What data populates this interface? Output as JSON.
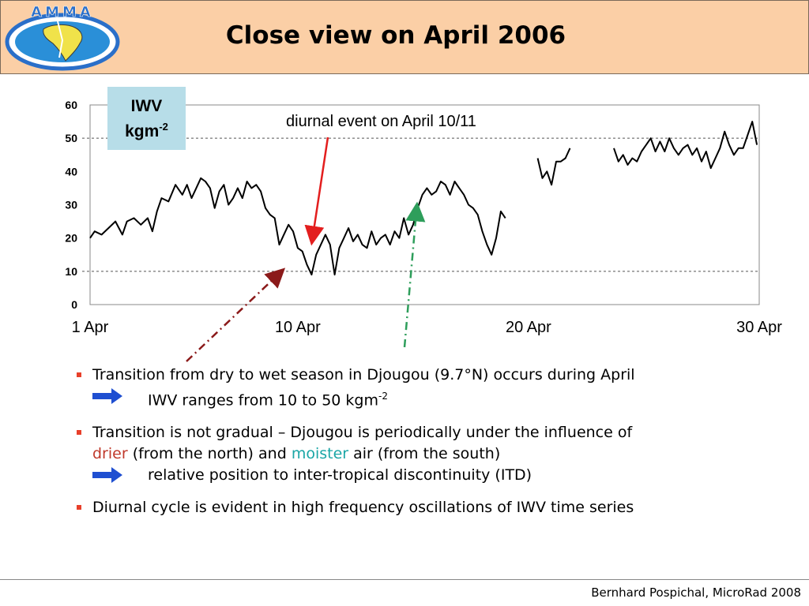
{
  "header": {
    "logo_text": "AMMA",
    "title": "Close view on April 2006"
  },
  "annotations": {
    "iwv_line1": "IWV",
    "iwv_line2": "kgm",
    "iwv_exp": "-2",
    "event_label": "diurnal event on April 10/11"
  },
  "colors": {
    "header_bg": "#fbcfa6",
    "iwv_box_bg": "#b7dde8",
    "event_arrow": "#e31e1e",
    "dry_arrow": "#8b1a1a",
    "wet_arrow": "#2e9e5b",
    "bullet": "#e8402a",
    "drier_text": "#c0392b",
    "moister_text": "#1aa6a6",
    "sub_arrow": "#1f4fd1"
  },
  "chart_data": {
    "type": "line",
    "xlim": [
      1,
      30
    ],
    "ylim": [
      0,
      60
    ],
    "yticks": [
      0,
      10,
      20,
      30,
      40,
      50,
      60
    ],
    "xticks": [
      {
        "value": 1,
        "label": "1 Apr"
      },
      {
        "value": 10,
        "label": "10 Apr"
      },
      {
        "value": 20,
        "label": "20 Apr"
      },
      {
        "value": 30,
        "label": "30 Apr"
      }
    ],
    "reference_lines": [
      10,
      50
    ],
    "grid": false,
    "series": [
      {
        "segments": [
          [
            [
              1.0,
              20
            ],
            [
              1.2,
              22
            ],
            [
              1.5,
              21
            ],
            [
              1.8,
              23
            ],
            [
              2.1,
              25
            ],
            [
              2.4,
              21
            ],
            [
              2.6,
              25
            ],
            [
              2.9,
              26
            ],
            [
              3.2,
              24
            ],
            [
              3.5,
              26
            ],
            [
              3.7,
              22
            ],
            [
              3.9,
              28
            ],
            [
              4.1,
              32
            ],
            [
              4.4,
              31
            ],
            [
              4.7,
              36
            ],
            [
              5.0,
              33
            ],
            [
              5.2,
              36
            ],
            [
              5.4,
              32
            ],
            [
              5.6,
              35
            ],
            [
              5.8,
              38
            ],
            [
              6.0,
              37
            ],
            [
              6.2,
              35
            ],
            [
              6.4,
              29
            ],
            [
              6.6,
              34
            ],
            [
              6.8,
              36
            ],
            [
              7.0,
              30
            ],
            [
              7.2,
              32
            ],
            [
              7.4,
              35
            ],
            [
              7.6,
              32
            ],
            [
              7.8,
              37
            ],
            [
              8.0,
              35
            ],
            [
              8.2,
              36
            ],
            [
              8.4,
              34
            ],
            [
              8.6,
              29
            ],
            [
              8.8,
              27
            ],
            [
              9.0,
              26
            ],
            [
              9.2,
              18
            ],
            [
              9.4,
              21
            ],
            [
              9.6,
              24
            ],
            [
              9.8,
              22
            ],
            [
              10.0,
              17
            ],
            [
              10.2,
              16
            ],
            [
              10.4,
              12
            ],
            [
              10.6,
              9
            ],
            [
              10.8,
              15
            ],
            [
              11.0,
              18
            ],
            [
              11.2,
              21
            ],
            [
              11.4,
              18
            ],
            [
              11.6,
              9
            ],
            [
              11.8,
              17
            ],
            [
              12.0,
              20
            ],
            [
              12.2,
              23
            ],
            [
              12.4,
              19
            ],
            [
              12.6,
              21
            ],
            [
              12.8,
              18
            ],
            [
              13.0,
              17
            ],
            [
              13.2,
              22
            ],
            [
              13.4,
              18
            ],
            [
              13.6,
              20
            ],
            [
              13.8,
              21
            ],
            [
              14.0,
              18
            ],
            [
              14.2,
              22
            ],
            [
              14.4,
              20
            ],
            [
              14.6,
              26
            ],
            [
              14.8,
              21
            ],
            [
              15.0,
              24
            ],
            [
              15.2,
              29
            ],
            [
              15.4,
              33
            ],
            [
              15.6,
              35
            ],
            [
              15.8,
              33
            ],
            [
              16.0,
              34
            ],
            [
              16.2,
              37
            ],
            [
              16.4,
              36
            ],
            [
              16.6,
              33
            ],
            [
              16.8,
              37
            ],
            [
              17.0,
              35
            ],
            [
              17.2,
              33
            ],
            [
              17.4,
              30
            ],
            [
              17.6,
              29
            ],
            [
              17.8,
              27
            ],
            [
              18.0,
              22
            ],
            [
              18.2,
              18
            ],
            [
              18.4,
              15
            ],
            [
              18.6,
              20
            ],
            [
              18.8,
              28
            ],
            [
              19.0,
              26
            ]
          ],
          [
            [
              20.4,
              44
            ],
            [
              20.6,
              38
            ],
            [
              20.8,
              40
            ],
            [
              21.0,
              36
            ],
            [
              21.2,
              43
            ],
            [
              21.4,
              43
            ],
            [
              21.6,
              44
            ],
            [
              21.8,
              47
            ]
          ],
          [
            [
              23.7,
              47
            ],
            [
              23.9,
              43
            ],
            [
              24.1,
              45
            ],
            [
              24.3,
              42
            ],
            [
              24.5,
              44
            ],
            [
              24.7,
              43
            ],
            [
              24.9,
              46
            ],
            [
              25.1,
              48
            ],
            [
              25.3,
              50
            ],
            [
              25.5,
              46
            ],
            [
              25.7,
              49
            ],
            [
              25.9,
              46
            ],
            [
              26.1,
              50
            ],
            [
              26.3,
              47
            ],
            [
              26.5,
              45
            ],
            [
              26.7,
              47
            ],
            [
              26.9,
              48
            ],
            [
              27.1,
              45
            ],
            [
              27.3,
              47
            ],
            [
              27.5,
              43
            ],
            [
              27.7,
              46
            ],
            [
              27.9,
              41
            ],
            [
              28.1,
              44
            ],
            [
              28.3,
              47
            ],
            [
              28.5,
              52
            ],
            [
              28.7,
              48
            ],
            [
              28.9,
              45
            ],
            [
              29.1,
              47
            ],
            [
              29.3,
              47
            ],
            [
              29.5,
              51
            ],
            [
              29.7,
              55
            ],
            [
              29.9,
              48
            ]
          ]
        ]
      }
    ]
  },
  "bullets": [
    {
      "text": "Transition from dry to wet season in Djougou (9.7°N) occurs during April",
      "sub": "IWV ranges from 10 to 50 kgm",
      "sub_exp": "-2"
    },
    {
      "text_a": "Transition is not gradual – Djougou is periodically under the influence of",
      "drier": "drier",
      "mid": "(from the north) and",
      "moister": "moister",
      "end": "air (from the south)",
      "sub": "relative position to inter-tropical discontinuity (ITD)"
    },
    {
      "text": "Diurnal cycle is evident in high frequency oscillations of IWV time series"
    }
  ],
  "footer": {
    "credit": "Bernhard Pospichal, MicroRad 2008"
  }
}
